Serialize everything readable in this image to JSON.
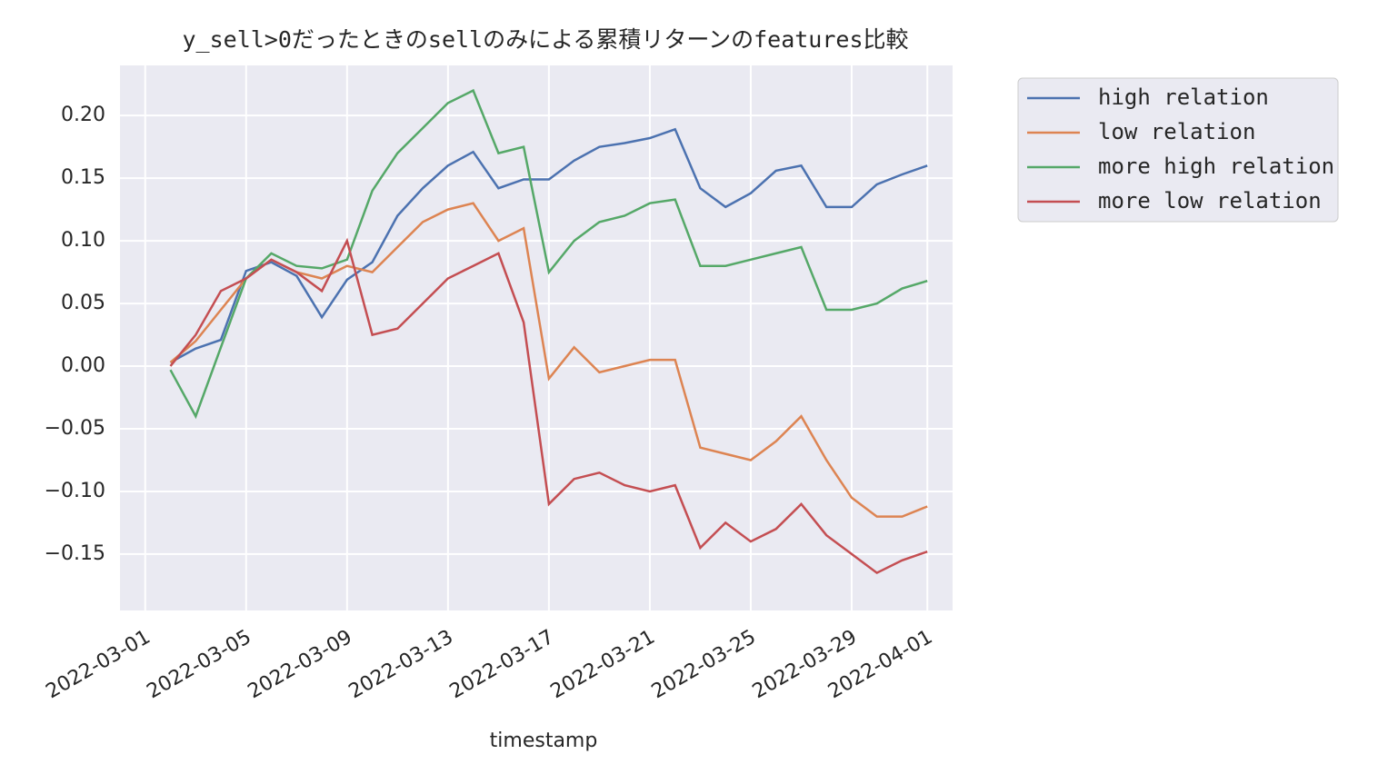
{
  "chart_data": {
    "type": "line",
    "title": "y_sell>0だったときのsellのみによる累積リターンのfeatures比較",
    "x_label": "timestamp",
    "x": [
      "2022-03-02",
      "2022-03-03",
      "2022-03-04",
      "2022-03-05",
      "2022-03-06",
      "2022-03-07",
      "2022-03-08",
      "2022-03-09",
      "2022-03-10",
      "2022-03-11",
      "2022-03-12",
      "2022-03-13",
      "2022-03-14",
      "2022-03-15",
      "2022-03-16",
      "2022-03-17",
      "2022-03-18",
      "2022-03-19",
      "2022-03-20",
      "2022-03-21",
      "2022-03-22",
      "2022-03-23",
      "2022-03-24",
      "2022-03-25",
      "2022-03-26",
      "2022-03-27",
      "2022-03-28",
      "2022-03-29",
      "2022-03-30",
      "2022-03-31",
      "2022-04-01"
    ],
    "series": [
      {
        "name": "high relation",
        "color": "#4c72b0",
        "values": [
          0.003,
          0.014,
          0.021,
          0.076,
          0.083,
          0.072,
          0.039,
          0.069,
          0.083,
          0.12,
          0.142,
          0.16,
          0.171,
          0.142,
          0.149,
          0.149,
          0.164,
          0.175,
          0.178,
          0.182,
          0.189,
          0.142,
          0.127,
          0.138,
          0.156,
          0.16,
          0.127,
          0.127,
          0.145,
          0.153,
          0.16
        ]
      },
      {
        "name": "low relation",
        "color": "#dd8452",
        "values": [
          0.003,
          0.02,
          0.045,
          0.07,
          0.085,
          0.075,
          0.07,
          0.08,
          0.075,
          0.095,
          0.115,
          0.125,
          0.13,
          0.1,
          0.11,
          -0.01,
          0.015,
          -0.005,
          0.0,
          0.005,
          0.005,
          -0.065,
          -0.07,
          -0.075,
          -0.06,
          -0.04,
          -0.075,
          -0.105,
          -0.12,
          -0.12,
          -0.112
        ]
      },
      {
        "name": "more high relation",
        "color": "#55a868",
        "values": [
          -0.003,
          -0.04,
          0.015,
          0.07,
          0.09,
          0.08,
          0.078,
          0.085,
          0.14,
          0.17,
          0.19,
          0.21,
          0.22,
          0.17,
          0.175,
          0.075,
          0.1,
          0.115,
          0.12,
          0.13,
          0.133,
          0.08,
          0.08,
          0.085,
          0.09,
          0.095,
          0.045,
          0.045,
          0.05,
          0.062,
          0.068
        ]
      },
      {
        "name": "more low relation",
        "color": "#c44e52",
        "values": [
          0.0,
          0.025,
          0.06,
          0.07,
          0.085,
          0.075,
          0.06,
          0.1,
          0.025,
          0.03,
          0.05,
          0.07,
          0.08,
          0.09,
          0.035,
          -0.11,
          -0.09,
          -0.085,
          -0.095,
          -0.1,
          -0.095,
          -0.145,
          -0.125,
          -0.14,
          -0.13,
          -0.11,
          -0.135,
          -0.15,
          -0.165,
          -0.155,
          -0.148
        ]
      }
    ],
    "xlim": [
      "2022-02-28",
      "2022-04-02"
    ],
    "xticks": [
      "2022-03-01",
      "2022-03-05",
      "2022-03-09",
      "2022-03-13",
      "2022-03-17",
      "2022-03-21",
      "2022-03-25",
      "2022-03-29",
      "2022-04-01"
    ],
    "ylim": [
      -0.195,
      0.24
    ],
    "yticks": [
      {
        "value": -0.15,
        "label": "−0.15"
      },
      {
        "value": -0.1,
        "label": "−0.10"
      },
      {
        "value": -0.05,
        "label": "−0.05"
      },
      {
        "value": 0,
        "label": "0.00"
      },
      0.05,
      {
        "value": 0.1,
        "label": "0.10"
      },
      0.15,
      {
        "value": 0.2,
        "label": "0.20"
      }
    ],
    "grid": true,
    "legend": "outside-upper-right"
  }
}
